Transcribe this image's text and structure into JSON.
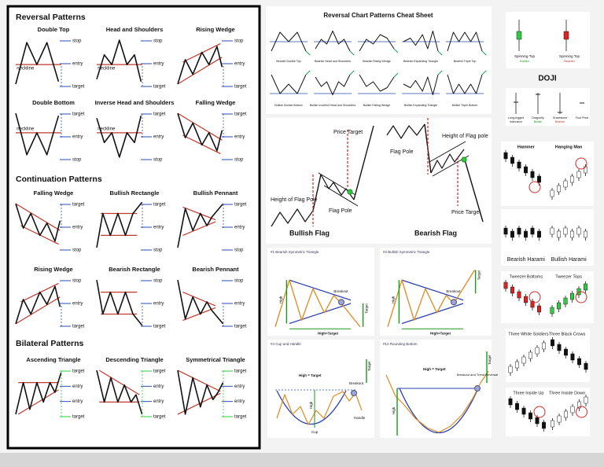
{
  "left_panel": {
    "sections": [
      {
        "title": "Reversal Patterns",
        "patterns": [
          {
            "name": "Double Top",
            "labels": [
              "stop",
              "neckline",
              "entry",
              "target"
            ]
          },
          {
            "name": "Head and Shoulders",
            "labels": [
              "stop",
              "neckline",
              "entry",
              "target"
            ]
          },
          {
            "name": "Rising Wedge",
            "labels": [
              "stop",
              "entry",
              "target"
            ]
          },
          {
            "name": "Double Bottom",
            "labels": [
              "target",
              "neckline",
              "entry",
              "stop"
            ]
          },
          {
            "name": "Inverse Head and Shoulders",
            "labels": [
              "target",
              "neckline",
              "entry",
              "stop"
            ]
          },
          {
            "name": "Falling Wedge",
            "labels": [
              "target",
              "entry",
              "stop"
            ]
          }
        ]
      },
      {
        "title": "Continuation Patterns",
        "patterns": [
          {
            "name": "Falling Wedge",
            "labels": [
              "target",
              "entry",
              "stop"
            ]
          },
          {
            "name": "Bullish Rectangle",
            "labels": [
              "target",
              "entry",
              "stop"
            ]
          },
          {
            "name": "Bullish Pennant",
            "labels": [
              "target",
              "entry",
              "stop"
            ]
          },
          {
            "name": "Rising Wedge",
            "labels": [
              "stop",
              "entry",
              "target"
            ]
          },
          {
            "name": "Bearish Rectangle",
            "labels": [
              "stop",
              "entry",
              "target"
            ]
          },
          {
            "name": "Bearish Pennant",
            "labels": [
              "stop",
              "entry",
              "target"
            ]
          }
        ]
      },
      {
        "title": "Bilateral Patterns",
        "patterns": [
          {
            "name": "Ascending Triangle",
            "labels": [
              "target",
              "entry",
              "entry",
              "target"
            ]
          },
          {
            "name": "Descending Triangle",
            "labels": [
              "target",
              "entry",
              "entry",
              "target"
            ]
          },
          {
            "name": "Symmetrical Triangle",
            "labels": [
              "target",
              "entry",
              "entry",
              "target"
            ]
          }
        ]
      }
    ]
  },
  "cheat_sheet": {
    "title": "Reversal Chart Patterns Cheat Sheet",
    "items": [
      "Bearish Double Top",
      "Bearish Head and Shoulders",
      "Bearish Rising Wedge",
      "Bearish Expanding Triangle",
      "Bearish Triple Top",
      "Bullish Double Bottom",
      "Bullish Inverted Head and Shoulders",
      "Bullish Falling Wedge",
      "Bullish Expanding Triangle",
      "Bullish Triple Bottom"
    ]
  },
  "flags": {
    "bullish": {
      "title": "Bullish Flag",
      "labels": [
        "Price Target",
        "Height of Flag Pole",
        "Flag Pole"
      ]
    },
    "bearish": {
      "title": "Bearish Flag",
      "labels": [
        "Height of Flag pole",
        "Flag Pole",
        "Price Target"
      ]
    }
  },
  "triangles": [
    {
      "title": "#1 Bearish Symmetric Triangle",
      "labels": [
        "Breakout",
        "High",
        "High=Target",
        "Target"
      ]
    },
    {
      "title": "#2 Bullish Symmetric Triangle",
      "labels": [
        "Breakout",
        "High",
        "High=Target",
        "Target"
      ]
    },
    {
      "title": "#4 Cup and Handle",
      "labels": [
        "High = Target",
        "Breakout",
        "High",
        "Cup",
        "Handle",
        "Target"
      ]
    },
    {
      "title": "#12 Rounding Bottom",
      "labels": [
        "High = Target",
        "Breakout and Trend Reversal",
        "High",
        "Target"
      ]
    }
  ],
  "candles": {
    "spinning_tops": [
      {
        "name": "Spinning Top",
        "signal": "Bullish"
      },
      {
        "name": "Spinning Top",
        "signal": "Bearish"
      }
    ],
    "doji_title": "DOJI",
    "doji": [
      {
        "name": "Long-legged",
        "signal": "Indecision"
      },
      {
        "name": "Dragonfly",
        "signal": "Bullish"
      },
      {
        "name": "Gravestone",
        "signal": "Bearish"
      },
      {
        "name": "Four Price"
      }
    ],
    "pairs": [
      [
        "Hammer",
        "Hanging Man"
      ],
      [
        "Bearish Harami",
        "Bullish Harami"
      ],
      [
        "Tweezer Bottoms",
        "Tweezer Tops"
      ],
      [
        "Three White Soldiers",
        "Three Black Crows"
      ],
      [
        "Three Inside Up",
        "Three Inside Down"
      ]
    ]
  }
}
